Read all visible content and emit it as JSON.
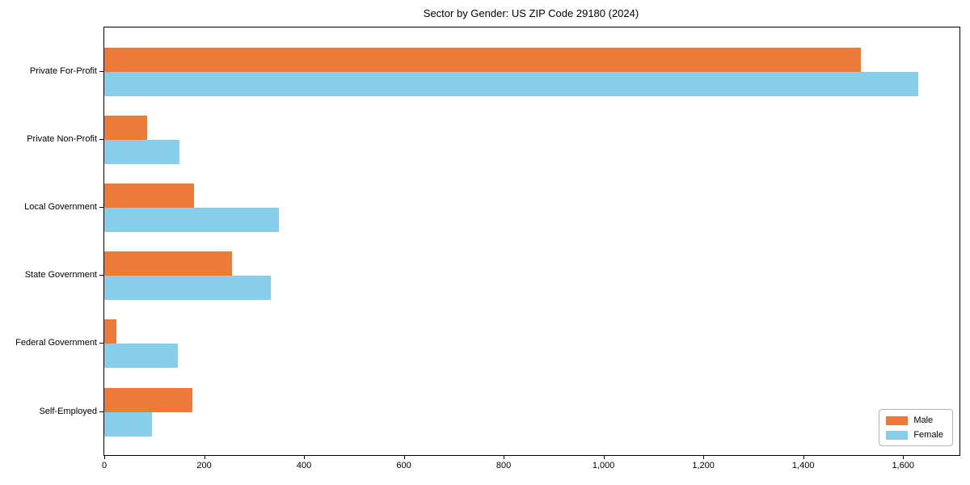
{
  "chart_data": {
    "type": "bar",
    "orientation": "horizontal",
    "title": "Sector by Gender: US ZIP Code 29180 (2024)",
    "categories": [
      "Private For-Profit",
      "Private Non-Profit",
      "Local Government",
      "State Government",
      "Federal Government",
      "Self-Employed"
    ],
    "series": [
      {
        "name": "Male",
        "color": "#EC7A39",
        "values": [
          1516,
          86,
          180,
          256,
          24,
          177
        ]
      },
      {
        "name": "Female",
        "color": "#87CEEB",
        "values": [
          1631,
          151,
          349,
          334,
          148,
          96
        ]
      }
    ],
    "xlabel": "",
    "ylabel": "",
    "xlim": [
      0,
      1713
    ],
    "xticks": [
      0,
      200,
      400,
      600,
      800,
      1000,
      1200,
      1400,
      1600
    ],
    "xtick_labels": [
      "0",
      "200",
      "400",
      "600",
      "800",
      "1,000",
      "1,200",
      "1,400",
      "1,600"
    ],
    "grid": false,
    "legend_position": "lower right",
    "colors": {
      "axis": "#000000",
      "legend_border": "#b4b4b4",
      "background": "#ffffff"
    }
  }
}
